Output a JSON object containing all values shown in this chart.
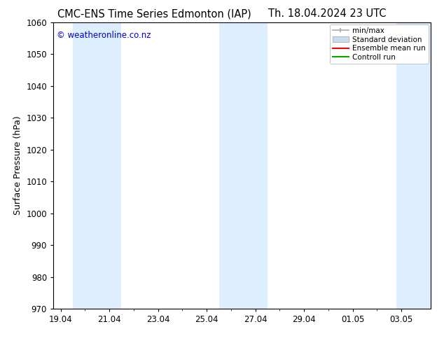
{
  "title_left": "CMC-ENS Time Series Edmonton (IAP)",
  "title_right": "Th. 18.04.2024 23 UTC",
  "ylabel": "Surface Pressure (hPa)",
  "xlabel_ticks": [
    "19.04",
    "21.04",
    "23.04",
    "25.04",
    "27.04",
    "29.04",
    "01.05",
    "03.05"
  ],
  "xtick_positions": [
    0,
    2,
    4,
    6,
    8,
    10,
    12,
    14
  ],
  "ylim": [
    970,
    1060
  ],
  "xlim": [
    -0.3,
    15.2
  ],
  "yticks": [
    970,
    980,
    990,
    1000,
    1010,
    1020,
    1030,
    1040,
    1050,
    1060
  ],
  "shaded_bands": [
    {
      "x_start": 0.5,
      "x_end": 2.5,
      "color": "#ddeeff"
    },
    {
      "x_start": 6.5,
      "x_end": 8.5,
      "color": "#ddeeff"
    },
    {
      "x_start": 13.8,
      "x_end": 15.2,
      "color": "#ddeeff"
    }
  ],
  "watermark": "© weatheronline.co.nz",
  "watermark_color": "#0000cc",
  "bg_color": "#ffffff",
  "plot_bg_color": "#ffffff",
  "legend_labels": [
    "min/max",
    "Standard deviation",
    "Ensemble mean run",
    "Controll run"
  ],
  "minmax_color": "#aaaaaa",
  "std_face_color": "#c8ddf0",
  "std_edge_color": "#aaaaaa",
  "mean_color": "#ff0000",
  "ctrl_color": "#00aa00",
  "title_fontsize": 10.5,
  "tick_fontsize": 8.5,
  "ylabel_fontsize": 9,
  "spine_color": "#000000"
}
